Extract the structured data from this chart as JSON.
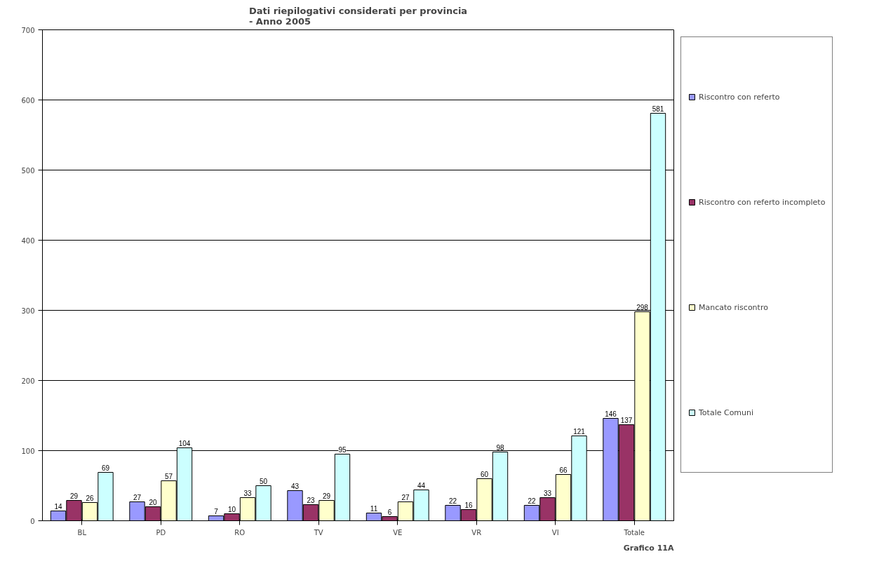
{
  "chart_data": {
    "type": "bar",
    "title": "Dati riepilogativi considerati per provincia\n- Anno 2005",
    "categories": [
      "BL",
      "PD",
      "RO",
      "TV",
      "VE",
      "VR",
      "VI",
      "Totale"
    ],
    "series": [
      {
        "name": "Riscontro con referto",
        "color": "#9999ff",
        "values": [
          14,
          27,
          7,
          43,
          11,
          22,
          22,
          146
        ]
      },
      {
        "name": "Riscontro con referto incompleto",
        "color": "#993366",
        "values": [
          29,
          20,
          10,
          23,
          6,
          16,
          33,
          137
        ]
      },
      {
        "name": "Mancato riscontro",
        "color": "#ffffcc",
        "values": [
          26,
          57,
          33,
          29,
          27,
          60,
          66,
          298
        ]
      },
      {
        "name": "Totale Comuni",
        "color": "#ccffff",
        "values": [
          69,
          104,
          50,
          95,
          44,
          98,
          121,
          581
        ]
      }
    ],
    "ylim": [
      0,
      700
    ],
    "yticks": [
      0,
      100,
      200,
      300,
      400,
      500,
      600,
      700
    ],
    "grid": "y",
    "legend": "right",
    "data_labels": true,
    "annotations": [
      "Grafico 11A"
    ]
  }
}
